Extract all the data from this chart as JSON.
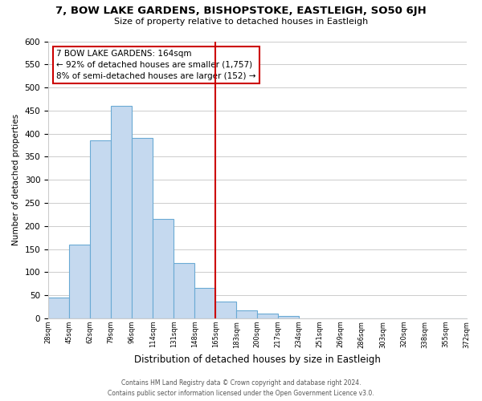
{
  "title": "7, BOW LAKE GARDENS, BISHOPSTOKE, EASTLEIGH, SO50 6JH",
  "subtitle": "Size of property relative to detached houses in Eastleigh",
  "xlabel": "Distribution of detached houses by size in Eastleigh",
  "ylabel": "Number of detached properties",
  "bar_values": [
    45,
    160,
    385,
    460,
    390,
    215,
    120,
    65,
    37,
    18,
    10,
    5,
    0,
    0,
    0,
    0,
    0,
    0,
    0,
    0
  ],
  "bin_labels": [
    "28sqm",
    "45sqm",
    "62sqm",
    "79sqm",
    "96sqm",
    "114sqm",
    "131sqm",
    "148sqm",
    "165sqm",
    "183sqm",
    "200sqm",
    "217sqm",
    "234sqm",
    "251sqm",
    "269sqm",
    "286sqm",
    "303sqm",
    "320sqm",
    "338sqm",
    "355sqm",
    "372sqm"
  ],
  "bar_color": "#c5d9ef",
  "bar_edge_color": "#6aaad4",
  "vline_color": "#cc0000",
  "annotation_title": "7 BOW LAKE GARDENS: 164sqm",
  "annotation_line1": "← 92% of detached houses are smaller (1,757)",
  "annotation_line2": "8% of semi-detached houses are larger (152) →",
  "annotation_box_color": "#ffffff",
  "annotation_box_edge": "#cc0000",
  "ylim": [
    0,
    600
  ],
  "yticks": [
    0,
    50,
    100,
    150,
    200,
    250,
    300,
    350,
    400,
    450,
    500,
    550,
    600
  ],
  "footer1": "Contains HM Land Registry data © Crown copyright and database right 2024.",
  "footer2": "Contains public sector information licensed under the Open Government Licence v3.0.",
  "bg_color": "#ffffff",
  "grid_color": "#cccccc"
}
